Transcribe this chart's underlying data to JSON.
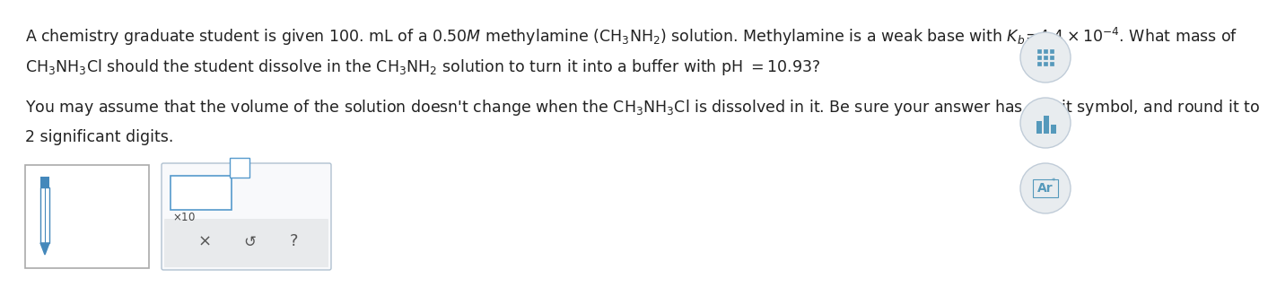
{
  "bg_color": "#f5f5f5",
  "bg_color_main": "#ffffff",
  "text_color": "#222222",
  "font_size_main": 12.5,
  "line1": "A chemistry graduate student is given 100. mL of a 0.50$\\mathit{M}$ methylamine $\\left(\\mathrm{CH_3NH_2}\\right)$ solution. Methylamine is a weak base with $K_b\\!=\\!4.4\\times10^{-4}$. What mass of",
  "line2": "$\\mathrm{CH_3NH_3Cl}$ should the student dissolve in the $\\mathrm{CH_3NH_2}$ solution to turn it into a buffer with pH $= 10.93$?",
  "line3": "You may assume that the volume of the solution doesn't change when the $\\mathrm{CH_3NH_3Cl}$ is dissolved in it. Be sure your answer has a unit symbol, and round it to",
  "line4": "2 significant digits.",
  "box1_color": "#ffffff",
  "box1_border": "#aaaaaa",
  "box2_color": "#ffffff",
  "box2_border": "#aaaacc",
  "btn_area_color": "#e8eaec",
  "pencil_color": "#4488bb",
  "inner_box_color": "#5599cc",
  "icon_circle_color": "#e8ecef",
  "icon_circle_border": "#c0ccd8",
  "icon_content_color": "#5599bb"
}
